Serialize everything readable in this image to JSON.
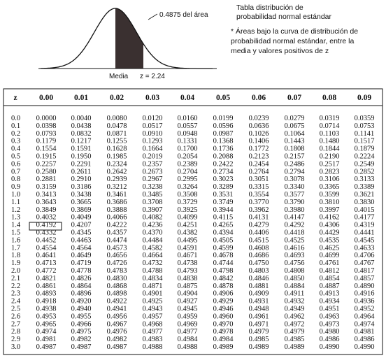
{
  "header": {
    "curve_label": "0.4875 del área",
    "mean_label": "Media",
    "z_label": "z = 2.24",
    "title_line1": "Tabla distribución de",
    "title_line2": "probabilidad normal estándar",
    "note_line1": "* Áreas bajo la curva de distribución de",
    "note_line2": "probabilidad normal estándar, entre la",
    "note_line3": "media y valores positivos de z"
  },
  "table": {
    "columns": [
      "z",
      "0.00",
      "0.01",
      "0.02",
      "0.03",
      "0.04",
      "0.05",
      "0.06",
      "0.07",
      "0.08",
      "0.09"
    ],
    "rows": [
      [
        "0.0",
        "0.0000",
        "0.0040",
        "0.0080",
        "0.0120",
        "0.0160",
        "0.0199",
        "0.0239",
        "0.0279",
        "0.0319",
        "0.0359"
      ],
      [
        "0.1",
        "0.0398",
        "0.0438",
        "0.0478",
        "0.0517",
        "0.0557",
        "0.0596",
        "0.0636",
        "0.0675",
        "0.0714",
        "0.0753"
      ],
      [
        "0.2",
        "0.0793",
        "0.0832",
        "0.0871",
        "0.0910",
        "0.0948",
        "0.0987",
        "0.1026",
        "0.1064",
        "0.1103",
        "0.1141"
      ],
      [
        "0.3",
        "0.1179",
        "0.1217",
        "0.1255",
        "0.1293",
        "0.1331",
        "0.1368",
        "0.1406",
        "0.1443",
        "0.1480",
        "0.1517"
      ],
      [
        "0.4",
        "0.1554",
        "0.1591",
        "0.1628",
        "0.1664",
        "0.1700",
        "0.1736",
        "0.1772",
        "0.1808",
        "0.1844",
        "0.1879"
      ],
      [
        "0.5",
        "0.1915",
        "0.1950",
        "0.1985",
        "0.2019",
        "0.2054",
        "0.2088",
        "0.2123",
        "0.2157",
        "0.2190",
        "0.2224"
      ],
      [
        "0.6",
        "0.2257",
        "0.2291",
        "0.2324",
        "0.2357",
        "0.2389",
        "0.2422",
        "0.2454",
        "0.2486",
        "0.2517",
        "0.2549"
      ],
      [
        "0.7",
        "0.2580",
        "0.2611",
        "0.2642",
        "0.2673",
        "0.2704",
        "0.2734",
        "0.2764",
        "0.2794",
        "0.2823",
        "0.2852"
      ],
      [
        "0.8",
        "0.2881",
        "0.2910",
        "0.2939",
        "0.2967",
        "0.2995",
        "0.3023",
        "0.3051",
        "0.3078",
        "0.3106",
        "0.3133"
      ],
      [
        "0.9",
        "0.3159",
        "0.3186",
        "0.3212",
        "0.3238",
        "0.3264",
        "0.3289",
        "0.3315",
        "0.3340",
        "0.3365",
        "0.3389"
      ],
      [
        "1.0",
        "0.3413",
        "0.3438",
        "0.3461",
        "0.3485",
        "0.3508",
        "0.3531",
        "0.3554",
        "0.3577",
        "0.3599",
        "0.3621"
      ],
      [
        "1.1",
        "0.3643",
        "0.3665",
        "0.3686",
        "0.3708",
        "0.3729",
        "0.3749",
        "0.3770",
        "0.3790",
        "0.3810",
        "0.3830"
      ],
      [
        "1.2",
        "0.3849",
        "0.3869",
        "0.3888",
        "0.3907",
        "0.3925",
        "0.3944",
        "0.3962",
        "0.3980",
        "0.3997",
        "0.4015"
      ],
      [
        "1.3",
        "0.4032",
        "0.4049",
        "0.4066",
        "0.4082",
        "0.4099",
        "0.4115",
        "0.4131",
        "0.4147",
        "0.4162",
        "0.4177"
      ],
      [
        "1.4",
        "0.4192",
        "0.4207",
        "0.4222",
        "0.4236",
        "0.4251",
        "0.4265",
        "0.4279",
        "0.4292",
        "0.4306",
        "0.4319"
      ],
      [
        "1.5",
        "0.4332",
        "0.4345",
        "0.4357",
        "0.4370",
        "0.4382",
        "0.4394",
        "0.4406",
        "0.4418",
        "0.4429",
        "0.4441"
      ],
      [
        "1.6",
        "0.4452",
        "0.4463",
        "0.4474",
        "0.4484",
        "0.4495",
        "0.4505",
        "0.4515",
        "0.4525",
        "0.4535",
        "0.4545"
      ],
      [
        "1.7",
        "0.4554",
        "0.4564",
        "0.4573",
        "0.4582",
        "0.4591",
        "0.4599",
        "0.4608",
        "0.4616",
        "0.4625",
        "0.4633"
      ],
      [
        "1.8",
        "0.4641",
        "0.4649",
        "0.4656",
        "0.4664",
        "0.4671",
        "0.4678",
        "0.4686",
        "0.4693",
        "0.4699",
        "0.4706"
      ],
      [
        "1.9",
        "0.4713",
        "0.4719",
        "0.4726",
        "0.4732",
        "0.4738",
        "0.4744",
        "0.4750",
        "0.4756",
        "0.4761",
        "0.4767"
      ],
      [
        "2.0",
        "0.4772",
        "0.4778",
        "0.4783",
        "0.4788",
        "0.4793",
        "0.4798",
        "0.4803",
        "0.4808",
        "0.4812",
        "0.4817"
      ],
      [
        "2.1",
        "0.4821",
        "0.4826",
        "0.4830",
        "0.4834",
        "0.4838",
        "0.4842",
        "0.4846",
        "0.4850",
        "0.4854",
        "0.4857"
      ],
      [
        "2.2",
        "0.4861",
        "0.4864",
        "0.4868",
        "0.4871",
        "0.4875",
        "0.4878",
        "0.4881",
        "0.4884",
        "0.4887",
        "0.4890"
      ],
      [
        "2.3",
        "0.4893",
        "0.4896",
        "0.4898",
        "0.4901",
        "0.4904",
        "0.4906",
        "0.4909",
        "0.4911",
        "0.4913",
        "0.4916"
      ],
      [
        "2.4",
        "0.4918",
        "0.4920",
        "0.4922",
        "0.4925",
        "0.4927",
        "0.4929",
        "0.4931",
        "0.4932",
        "0.4934",
        "0.4936"
      ],
      [
        "2.5",
        "0.4938",
        "0.4940",
        "0.4941",
        "0.4943",
        "0.4945",
        "0.4946",
        "0.4948",
        "0.4949",
        "0.4951",
        "0.4952"
      ],
      [
        "2.6",
        "0.4953",
        "0.4955",
        "0.4956",
        "0.4957",
        "0.4959",
        "0.4960",
        "0.4961",
        "0.4962",
        "0.4963",
        "0.4964"
      ],
      [
        "2.7",
        "0.4965",
        "0.4966",
        "0.4967",
        "0.4968",
        "0.4969",
        "0.4970",
        "0.4971",
        "0.4972",
        "0.4973",
        "0.4974"
      ],
      [
        "2.8",
        "0.4974",
        "0.4975",
        "0.4976",
        "0.4977",
        "0.4977",
        "0.4978",
        "0.4979",
        "0.4979",
        "0.4980",
        "0.4981"
      ],
      [
        "2.9",
        "0.4981",
        "0.4982",
        "0.4982",
        "0.4983",
        "0.4984",
        "0.4984",
        "0.4985",
        "0.4985",
        "0.4986",
        "0.4986"
      ],
      [
        "3.0",
        "0.4987",
        "0.4987",
        "0.4987",
        "0.4988",
        "0.4988",
        "0.4989",
        "0.4989",
        "0.4989",
        "0.4990",
        "0.4990"
      ]
    ]
  }
}
